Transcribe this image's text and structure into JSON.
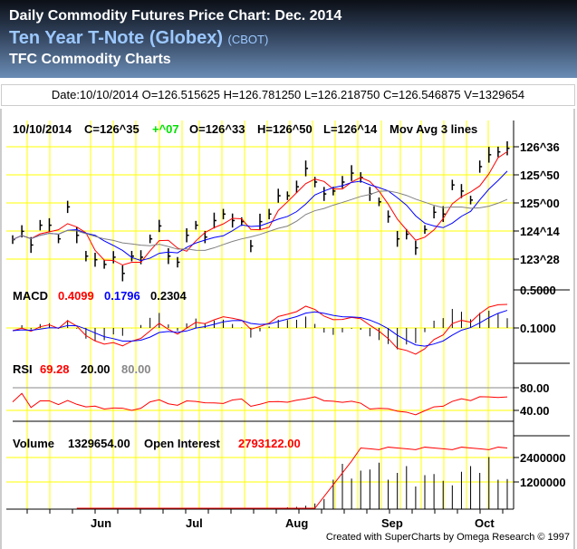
{
  "header": {
    "title": "Daily Commodity Futures Price Chart: Dec. 2014",
    "instrument": "Ten Year T-Note (Globex)",
    "exchange": "(CBOT)",
    "site": "TFC Commodity Charts"
  },
  "info_bar": "Date:10/10/2014 O=126.515625 H=126.781250 L=126.218750 C=126.546875 V=1329654",
  "price_panel": {
    "date": "10/10/2014",
    "close": "C=126^35",
    "change": "+^07",
    "open": "O=126^33",
    "high": "H=126^50",
    "low": "L=126^14",
    "study": "Mov Avg 3 lines",
    "axis": [
      "126^36",
      "125^50",
      "125^00",
      "124^14",
      "123^28"
    ]
  },
  "macd_panel": {
    "label": "MACD",
    "v1": "0.4099",
    "v2": "0.1796",
    "v3": "0.2304",
    "axis": [
      "0.5000",
      "0.1000"
    ]
  },
  "rsi_panel": {
    "label": "RSI",
    "value": "69.28",
    "low": "20.00",
    "high": "80.00",
    "axis": [
      "80.00",
      "40.00"
    ]
  },
  "volume_panel": {
    "label": "Volume",
    "volume": "1329654.00",
    "oi_label": "Open Interest",
    "oi": "2793122.00",
    "axis": [
      "2400000",
      "1200000"
    ]
  },
  "months": [
    "Jun",
    "Jul",
    "Aug",
    "Sep",
    "Oct"
  ],
  "credit": "Created with SuperCharts by Omega Research © 1997",
  "colors": {
    "ma_fast": "#ff0000",
    "ma_mid": "#0000ff",
    "ma_slow": "#808080",
    "grid": "#ffff00"
  },
  "chart_data": {
    "type": "bar",
    "title": "Ten Year T-Note (Globex) Dec. 2014 daily",
    "closes": [
      123.98,
      124.21,
      123.83,
      124.38,
      124.38,
      124.0,
      124.89,
      124.1,
      123.52,
      123.42,
      123.29,
      123.49,
      123.04,
      123.52,
      123.49,
      124.0,
      124.36,
      123.52,
      123.35,
      124.1,
      124.38,
      124.05,
      124.51,
      124.69,
      124.51,
      124.48,
      123.8,
      124.48,
      124.69,
      125.2,
      125.2,
      125.45,
      125.96,
      125.58,
      125.25,
      125.33,
      125.58,
      125.83,
      125.71,
      125.25,
      125.03,
      124.62,
      124.0,
      124.13,
      123.75,
      124.26,
      124.74,
      124.69,
      125.5,
      125.33,
      125.08,
      126.01,
      126.34,
      126.42,
      126.52
    ],
    "volume": [
      0,
      0,
      0,
      0,
      0,
      0,
      0,
      0,
      0,
      0,
      0,
      0,
      0,
      0,
      0,
      0,
      0,
      0,
      0,
      0,
      0,
      0,
      0,
      0,
      0,
      20000,
      30000,
      40000,
      50000,
      60000,
      80000,
      100000,
      150000,
      250000,
      450000,
      1300000,
      2000000,
      1350000,
      1700000,
      1750000,
      2050000,
      1300000,
      1600000,
      1900000,
      1000000,
      1500000,
      1550000,
      1250000,
      1050000,
      1650000,
      1900000,
      1600000,
      2300000,
      1300000,
      1329654
    ],
    "open_interest_range": [
      40000,
      2793122
    ],
    "ylim": [
      123.0,
      126.8
    ]
  }
}
